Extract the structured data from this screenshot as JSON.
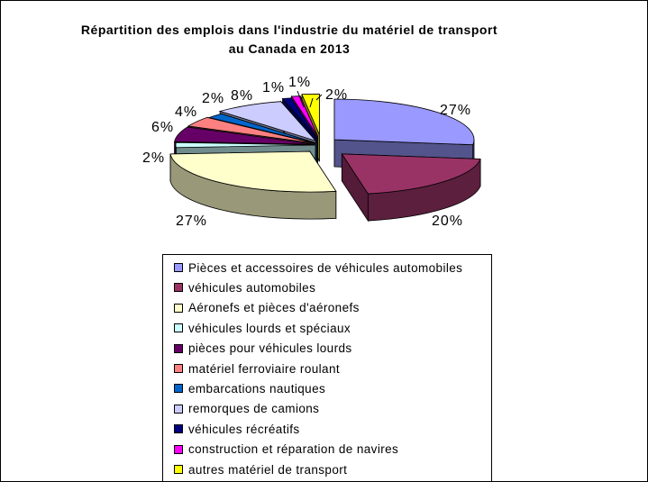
{
  "chart_data": {
    "type": "pie",
    "title": "Répartition des emplois dans l'industrie du matériel de transport",
    "subtitle": "au Canada en 2013",
    "legend_position": "bottom",
    "exploded": true,
    "slices": [
      {
        "name": "Pièces et accessoires de véhicules automobiles",
        "value": 27,
        "label": "27%",
        "color": "#9999FF"
      },
      {
        "name": "véhicules automobiles",
        "value": 20,
        "label": "20%",
        "color": "#993366"
      },
      {
        "name": "Aéronefs et pièces d'aéronefs",
        "value": 27,
        "label": "27%",
        "color": "#FFFFCC"
      },
      {
        "name": "véhicules lourds et spéciaux",
        "value": 2,
        "label": "2%",
        "color": "#CCFFFF"
      },
      {
        "name": "pièces pour véhicules lourds",
        "value": 6,
        "label": "6%",
        "color": "#660066"
      },
      {
        "name": "matériel ferroviaire roulant",
        "value": 4,
        "label": "4%",
        "color": "#FF8080"
      },
      {
        "name": "embarcations nautiques",
        "value": 2,
        "label": "2%",
        "color": "#0066CC"
      },
      {
        "name": "remorques de camions",
        "value": 8,
        "label": "8%",
        "color": "#CCCCFF"
      },
      {
        "name": "véhicules récréatifs",
        "value": 1,
        "label": "1%",
        "color": "#000080"
      },
      {
        "name": "construction et réparation de navires",
        "value": 1,
        "label": "1%",
        "color": "#FF00FF"
      },
      {
        "name": "autres matériel de transport",
        "value": 2,
        "label": "2%",
        "color": "#FFFF00"
      }
    ]
  }
}
